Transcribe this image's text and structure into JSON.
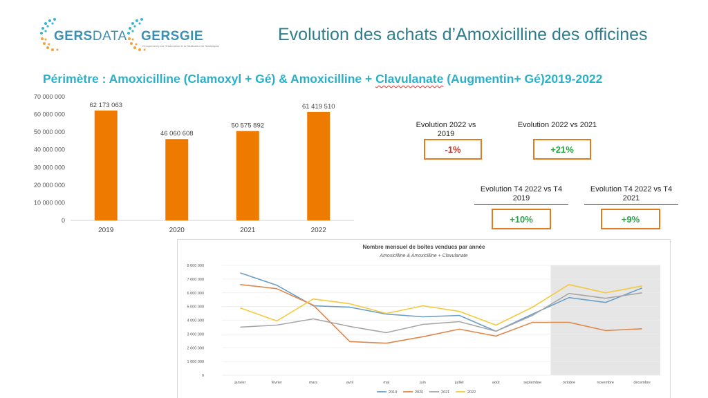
{
  "header": {
    "logo_left": {
      "text_bold": "GERS",
      "text_light": "DATA"
    },
    "logo_right": {
      "text_bold": "GERS",
      "text_light": "GIE",
      "tagline": "Groupement pour l'Elaboration et la Réalisation de Statistiques"
    },
    "title": "Evolution des achats d’Amoxicilline des officines",
    "subtitle_prefix": "Périmètre : Amoxicilline (Clamoxyl + Gé) & Amoxicilline + ",
    "subtitle_underlined": "Clavulanate",
    "subtitle_suffix": " (Augmentin+ Gé)2019-2022"
  },
  "evolutions": [
    {
      "label": "Evolution 2022 vs 2019",
      "value": "-1%",
      "sign": "neg"
    },
    {
      "label": "Evolution 2022 vs 2021",
      "value": "+21%",
      "sign": "pos"
    },
    {
      "label": "Evolution T4 2022 vs T4 2019",
      "value": "+10%",
      "sign": "pos"
    },
    {
      "label": "Evolution T4 2022 vs T4 2021",
      "value": "+9%",
      "sign": "pos"
    }
  ],
  "colors": {
    "bar": "#ee7a00",
    "series_2019": "#6a9fc8",
    "series_2020": "#e0864a",
    "series_2021": "#a6a6a6",
    "series_2022": "#f5c93c",
    "title": "#2e7d8c",
    "subtitle": "#2bb0c8",
    "box_border": "#e07b20"
  },
  "chart_data": [
    {
      "type": "bar",
      "categories": [
        "2019",
        "2020",
        "2021",
        "2022"
      ],
      "values": [
        62173063,
        46060608,
        50575892,
        61419510
      ],
      "value_labels": [
        "62 173 063",
        "46 060 608",
        "50 575 892",
        "61 419 510"
      ],
      "ylim": [
        0,
        70000000
      ],
      "yticks": [
        0,
        10000000,
        20000000,
        30000000,
        40000000,
        50000000,
        60000000,
        70000000
      ],
      "ytick_labels": [
        "0",
        "10 000 000",
        "20 000 000",
        "30 000 000",
        "40 000 000",
        "50 000 000",
        "60 000 000",
        "70 000 000"
      ],
      "title": "",
      "xlabel": "",
      "ylabel": ""
    },
    {
      "type": "line",
      "title": "Nombre mensuel de boîtes vendues par année",
      "subtitle": "Amoxicilline & Amoxicilline + Clavulanate",
      "categories": [
        "janvier",
        "février",
        "mars",
        "avril",
        "mai",
        "juin",
        "juillet",
        "août",
        "septembre",
        "octobre",
        "novembre",
        "décembre"
      ],
      "ylim": [
        0,
        8000000
      ],
      "yticks": [
        0,
        1000000,
        2000000,
        3000000,
        4000000,
        5000000,
        6000000,
        7000000,
        8000000
      ],
      "ytick_labels": [
        "0",
        "1 000 000",
        "2 000 000",
        "3 000 000",
        "4 000 000",
        "5 000 000",
        "6 000 000",
        "7 000 000",
        "8 000 000"
      ],
      "shaded_categories": [
        "octobre",
        "novembre",
        "décembre"
      ],
      "legend_position": "bottom",
      "series": [
        {
          "name": "2019",
          "values": [
            7450000,
            6550000,
            5050000,
            4950000,
            4450000,
            4250000,
            4350000,
            3200000,
            4450000,
            5650000,
            5300000,
            6350000
          ]
        },
        {
          "name": "2020",
          "values": [
            6600000,
            6300000,
            5100000,
            2450000,
            2330000,
            2800000,
            3350000,
            2850000,
            3850000,
            3850000,
            3250000,
            3380000
          ]
        },
        {
          "name": "2021",
          "values": [
            3500000,
            3650000,
            4100000,
            3550000,
            3100000,
            3700000,
            3900000,
            3200000,
            4350000,
            5950000,
            5600000,
            6000000
          ]
        },
        {
          "name": "2022",
          "values": [
            4900000,
            3950000,
            5550000,
            5200000,
            4500000,
            5050000,
            4650000,
            3650000,
            4950000,
            6600000,
            6000000,
            6500000
          ]
        }
      ]
    }
  ]
}
